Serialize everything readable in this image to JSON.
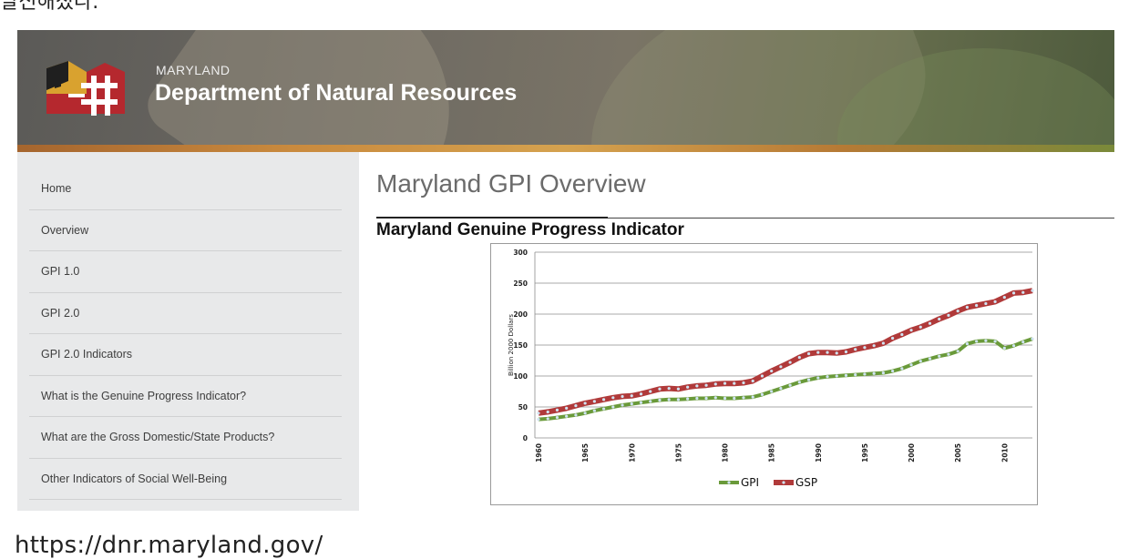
{
  "captions": {
    "top": "발신해졌다.",
    "bottom": "https://dnr.maryland.gov/"
  },
  "header": {
    "state": "MARYLAND",
    "department": "Department of Natural Resources"
  },
  "sidebar": {
    "items": [
      {
        "label": "Home"
      },
      {
        "label": "Overview"
      },
      {
        "label": "GPI 1.0"
      },
      {
        "label": "GPI 2.0"
      },
      {
        "label": "GPI 2.0 Indicators"
      },
      {
        "label": "What is the Genuine Progress Indicator?"
      },
      {
        "label": "What are the Gross Domestic/State Products?"
      },
      {
        "label": "Other Indicators of Social Well-Being"
      }
    ]
  },
  "main": {
    "title": "Maryland GPI Overview",
    "chart_heading": "Maryland Genuine Progress Indicator"
  },
  "colors": {
    "gpi": "#6a9a3a",
    "gsp": "#b03a3a",
    "marker": "#cfe3f2"
  },
  "chart_data": {
    "type": "line",
    "title": "",
    "xlabel": "",
    "ylabel": "Billion 2000 Dollars",
    "ylim": [
      0,
      300
    ],
    "yticks": [
      0,
      50,
      100,
      150,
      200,
      250,
      300
    ],
    "xlim": [
      1960,
      2013
    ],
    "xticks": [
      1960,
      1965,
      1970,
      1975,
      1980,
      1985,
      1990,
      1995,
      2000,
      2005,
      2010
    ],
    "grid": true,
    "legend": "bottom",
    "x": [
      1960,
      1961,
      1962,
      1963,
      1964,
      1965,
      1966,
      1967,
      1968,
      1969,
      1970,
      1971,
      1972,
      1973,
      1974,
      1975,
      1976,
      1977,
      1978,
      1979,
      1980,
      1981,
      1982,
      1983,
      1984,
      1985,
      1986,
      1987,
      1988,
      1989,
      1990,
      1991,
      1992,
      1993,
      1994,
      1995,
      1996,
      1997,
      1998,
      1999,
      2000,
      2001,
      2002,
      2003,
      2004,
      2005,
      2006,
      2007,
      2008,
      2009,
      2010,
      2011,
      2012,
      2013
    ],
    "series": [
      {
        "name": "GPI",
        "values": [
          30,
          31,
          33,
          35,
          37,
          40,
          44,
          47,
          50,
          53,
          55,
          57,
          59,
          61,
          62,
          62,
          63,
          64,
          64,
          65,
          64,
          64,
          65,
          66,
          70,
          75,
          80,
          85,
          90,
          94,
          97,
          99,
          100,
          101,
          102,
          103,
          104,
          105,
          108,
          112,
          118,
          124,
          128,
          132,
          135,
          140,
          152,
          156,
          157,
          156,
          145,
          149,
          155,
          160
        ]
      },
      {
        "name": "GSP",
        "values": [
          40,
          42,
          45,
          48,
          52,
          56,
          59,
          62,
          65,
          67,
          68,
          71,
          75,
          79,
          80,
          79,
          82,
          84,
          85,
          87,
          88,
          88,
          89,
          92,
          100,
          108,
          115,
          122,
          130,
          136,
          138,
          138,
          137,
          139,
          143,
          146,
          149,
          153,
          161,
          167,
          174,
          179,
          185,
          192,
          198,
          205,
          211,
          214,
          217,
          220,
          227,
          234,
          235,
          238
        ]
      }
    ]
  }
}
